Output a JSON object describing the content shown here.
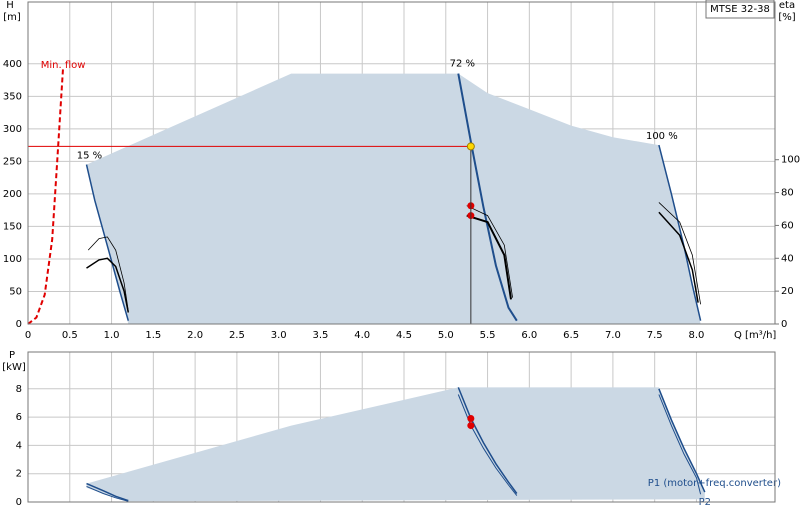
{
  "chart_data": [
    {
      "type": "line",
      "title": "MTSE 32-38",
      "y_label": "H",
      "y_unit": "[m]",
      "y2_label": "eta",
      "y2_unit": "[%]",
      "x_label": "Q [m³/h]",
      "xlim": [
        0,
        8.94
      ],
      "xticks": [
        0,
        0.5,
        {
          "value": 1,
          "label": "1.0"
        },
        1.5,
        {
          "value": 2,
          "label": "2.0"
        },
        2.5,
        {
          "value": 3,
          "label": "3.0"
        },
        3.5,
        {
          "value": 4,
          "label": "4.0"
        },
        4.5,
        {
          "value": 5,
          "label": "5.0"
        },
        5.5,
        {
          "value": 6,
          "label": "6.0"
        },
        6.5,
        {
          "value": 7,
          "label": "7.0"
        },
        7.5,
        {
          "value": 8,
          "label": "8.0"
        }
      ],
      "ylim": [
        0,
        495
      ],
      "yticks": [
        0,
        50,
        100,
        150,
        200,
        250,
        300,
        350,
        400
      ],
      "y2lim": [
        0,
        196
      ],
      "y2ticks": [
        0,
        20,
        40,
        60,
        80,
        100
      ],
      "grid": true,
      "series": [
        {
          "style": "area",
          "color": "#cbd8e4",
          "x": [
            0.7,
            3.15,
            5.15,
            5.5,
            6.0,
            6.5,
            7.0,
            7.55,
            7.7,
            7.85,
            7.95,
            8.05,
            1.2,
            1.1,
            0.95,
            0.8,
            0.7
          ],
          "values": [
            245,
            385,
            385,
            355,
            330,
            305,
            287,
            275,
            200,
            120,
            60,
            0,
            0,
            50,
            120,
            190,
            245
          ]
        },
        {
          "name": "Min. flow",
          "style": "dashed",
          "color": "#e00000",
          "width": 2,
          "x": [
            0,
            0.1,
            0.2,
            0.29,
            0.35,
            0.42
          ],
          "values": [
            0,
            10,
            45,
            130,
            250,
            395
          ]
        },
        {
          "name": "15 %",
          "style": "line",
          "color": "#1f4e8c",
          "width": 1.5,
          "x": [
            0.7,
            0.8,
            0.95,
            1.1,
            1.2
          ],
          "values": [
            245,
            190,
            120,
            50,
            5
          ]
        },
        {
          "name": "72 %",
          "style": "line",
          "color": "#1f4e8c",
          "width": 2,
          "x": [
            5.15,
            5.3,
            5.45,
            5.6,
            5.75,
            5.85
          ],
          "values": [
            385,
            280,
            180,
            90,
            25,
            5
          ]
        },
        {
          "name": "100 %",
          "style": "line",
          "color": "#1f4e8c",
          "width": 1.5,
          "x": [
            7.55,
            7.7,
            7.85,
            7.95,
            8.05
          ],
          "values": [
            275,
            200,
            120,
            60,
            5
          ]
        },
        {
          "style": "line",
          "axis": "y2",
          "color": "#000000",
          "width": 0.8,
          "x": [
            0.72,
            0.85,
            0.95,
            1.05,
            1.15,
            1.2
          ],
          "values": [
            45,
            52,
            53,
            45,
            25,
            8
          ]
        },
        {
          "style": "line",
          "axis": "y2",
          "color": "#000000",
          "width": 1.5,
          "x": [
            0.7,
            0.85,
            0.95,
            1.05,
            1.15,
            1.2
          ],
          "values": [
            34,
            39,
            40,
            35,
            20,
            7
          ]
        },
        {
          "style": "line",
          "axis": "y2",
          "color": "#000000",
          "width": 0.8,
          "x": [
            5.25,
            5.5,
            5.7,
            5.8
          ],
          "values": [
            72,
            66,
            48,
            16
          ]
        },
        {
          "style": "line",
          "axis": "y2",
          "color": "#000000",
          "width": 2,
          "x": [
            5.25,
            5.5,
            5.7,
            5.78
          ],
          "values": [
            66,
            62,
            42,
            15
          ]
        },
        {
          "style": "line",
          "axis": "y2",
          "color": "#000000",
          "width": 0.8,
          "x": [
            7.55,
            7.8,
            7.95,
            8.05
          ],
          "values": [
            74,
            62,
            42,
            12
          ]
        },
        {
          "style": "line",
          "axis": "y2",
          "color": "#000000",
          "width": 1.5,
          "x": [
            7.55,
            7.8,
            7.95,
            8.02
          ],
          "values": [
            68,
            54,
            33,
            13
          ]
        },
        {
          "style": "dot",
          "axis": "y2",
          "color": "#e00000",
          "x": [
            5.3,
            5.3
          ],
          "values": [
            72,
            66
          ]
        },
        {
          "style": "duty",
          "color": "#ffd700",
          "line_color": "#e00000",
          "x": [
            5.3
          ],
          "values": [
            273
          ]
        }
      ]
    },
    {
      "type": "line",
      "y_label": "P",
      "y_unit": "[kW]",
      "xlim": [
        0,
        8.94
      ],
      "ylim": [
        0,
        10.6
      ],
      "yticks": [
        0,
        2,
        4,
        6,
        8
      ],
      "grid": true,
      "series": [
        {
          "style": "area",
          "color": "#cbd8e4",
          "x": [
            0.7,
            3.15,
            5.15,
            7.55,
            7.8,
            8.1,
            8.1,
            1.2,
            1.0,
            0.7
          ],
          "values": [
            1.3,
            5.4,
            8.1,
            8.1,
            4.5,
            0.7,
            0.2,
            0.05,
            0.4,
            1.0
          ]
        },
        {
          "style": "line",
          "color": "#1f4e8c",
          "width": 1.5,
          "x": [
            0.7,
            0.9,
            1.05,
            1.2
          ],
          "values": [
            1.3,
            0.8,
            0.4,
            0.1
          ]
        },
        {
          "style": "line",
          "color": "#1f4e8c",
          "width": 1,
          "x": [
            0.7,
            0.9,
            1.05,
            1.2
          ],
          "values": [
            1.1,
            0.6,
            0.3,
            0.05
          ]
        },
        {
          "style": "line",
          "color": "#1f4e8c",
          "width": 1.5,
          "x": [
            5.15,
            5.3,
            5.45,
            5.6,
            5.75,
            5.85
          ],
          "values": [
            8.1,
            5.9,
            4.2,
            2.7,
            1.4,
            0.6
          ]
        },
        {
          "style": "line",
          "color": "#1f4e8c",
          "width": 1,
          "x": [
            5.15,
            5.3,
            5.45,
            5.6,
            5.75,
            5.85
          ],
          "values": [
            7.6,
            5.4,
            3.8,
            2.4,
            1.2,
            0.45
          ]
        },
        {
          "name": "P1 (motor+freq.converter)",
          "style": "line",
          "color": "#1f4e8c",
          "width": 1.5,
          "x": [
            7.55,
            7.7,
            7.85,
            8.0,
            8.1
          ],
          "values": [
            8.0,
            5.8,
            3.8,
            2.0,
            0.7
          ]
        },
        {
          "name": "P2",
          "style": "line",
          "color": "#1f4e8c",
          "width": 1,
          "x": [
            7.55,
            7.7,
            7.85,
            8.0,
            8.05
          ],
          "values": [
            7.6,
            5.4,
            3.4,
            1.7,
            0.55
          ]
        },
        {
          "style": "dot",
          "color": "#e00000",
          "x": [
            5.3,
            5.3
          ],
          "values": [
            5.9,
            5.4
          ]
        }
      ]
    }
  ]
}
